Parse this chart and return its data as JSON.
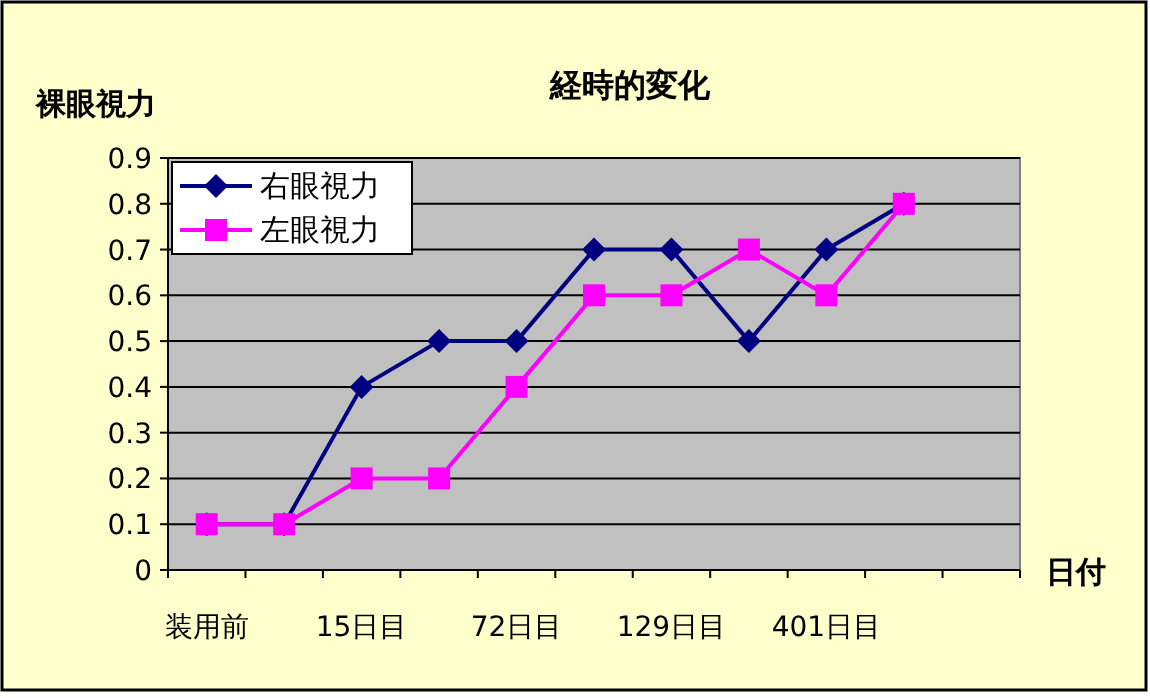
{
  "chart_data": {
    "type": "line",
    "title": "経時的変化",
    "ylabel": "裸眼視力",
    "xlabel": "日付",
    "categories": [
      "装用前",
      null,
      "15日目",
      null,
      "72日目",
      null,
      "129日目",
      null,
      "401日目",
      null,
      null
    ],
    "series": [
      {
        "name": "右眼視力",
        "color": "#000080",
        "marker": "diamond",
        "values": [
          0.1,
          0.1,
          0.4,
          0.5,
          0.5,
          0.7,
          0.7,
          0.5,
          0.7,
          0.8,
          null
        ]
      },
      {
        "name": "左眼視力",
        "color": "#ff00ff",
        "marker": "square",
        "values": [
          0.1,
          0.1,
          0.2,
          0.2,
          0.4,
          0.6,
          0.6,
          0.7,
          0.6,
          0.8,
          null
        ]
      }
    ],
    "ylim": [
      0,
      0.9
    ],
    "yticks": [
      0,
      0.1,
      0.2,
      0.3,
      0.4,
      0.5,
      0.6,
      0.7,
      0.8,
      0.9
    ],
    "grid": "y",
    "legend": "top left"
  }
}
